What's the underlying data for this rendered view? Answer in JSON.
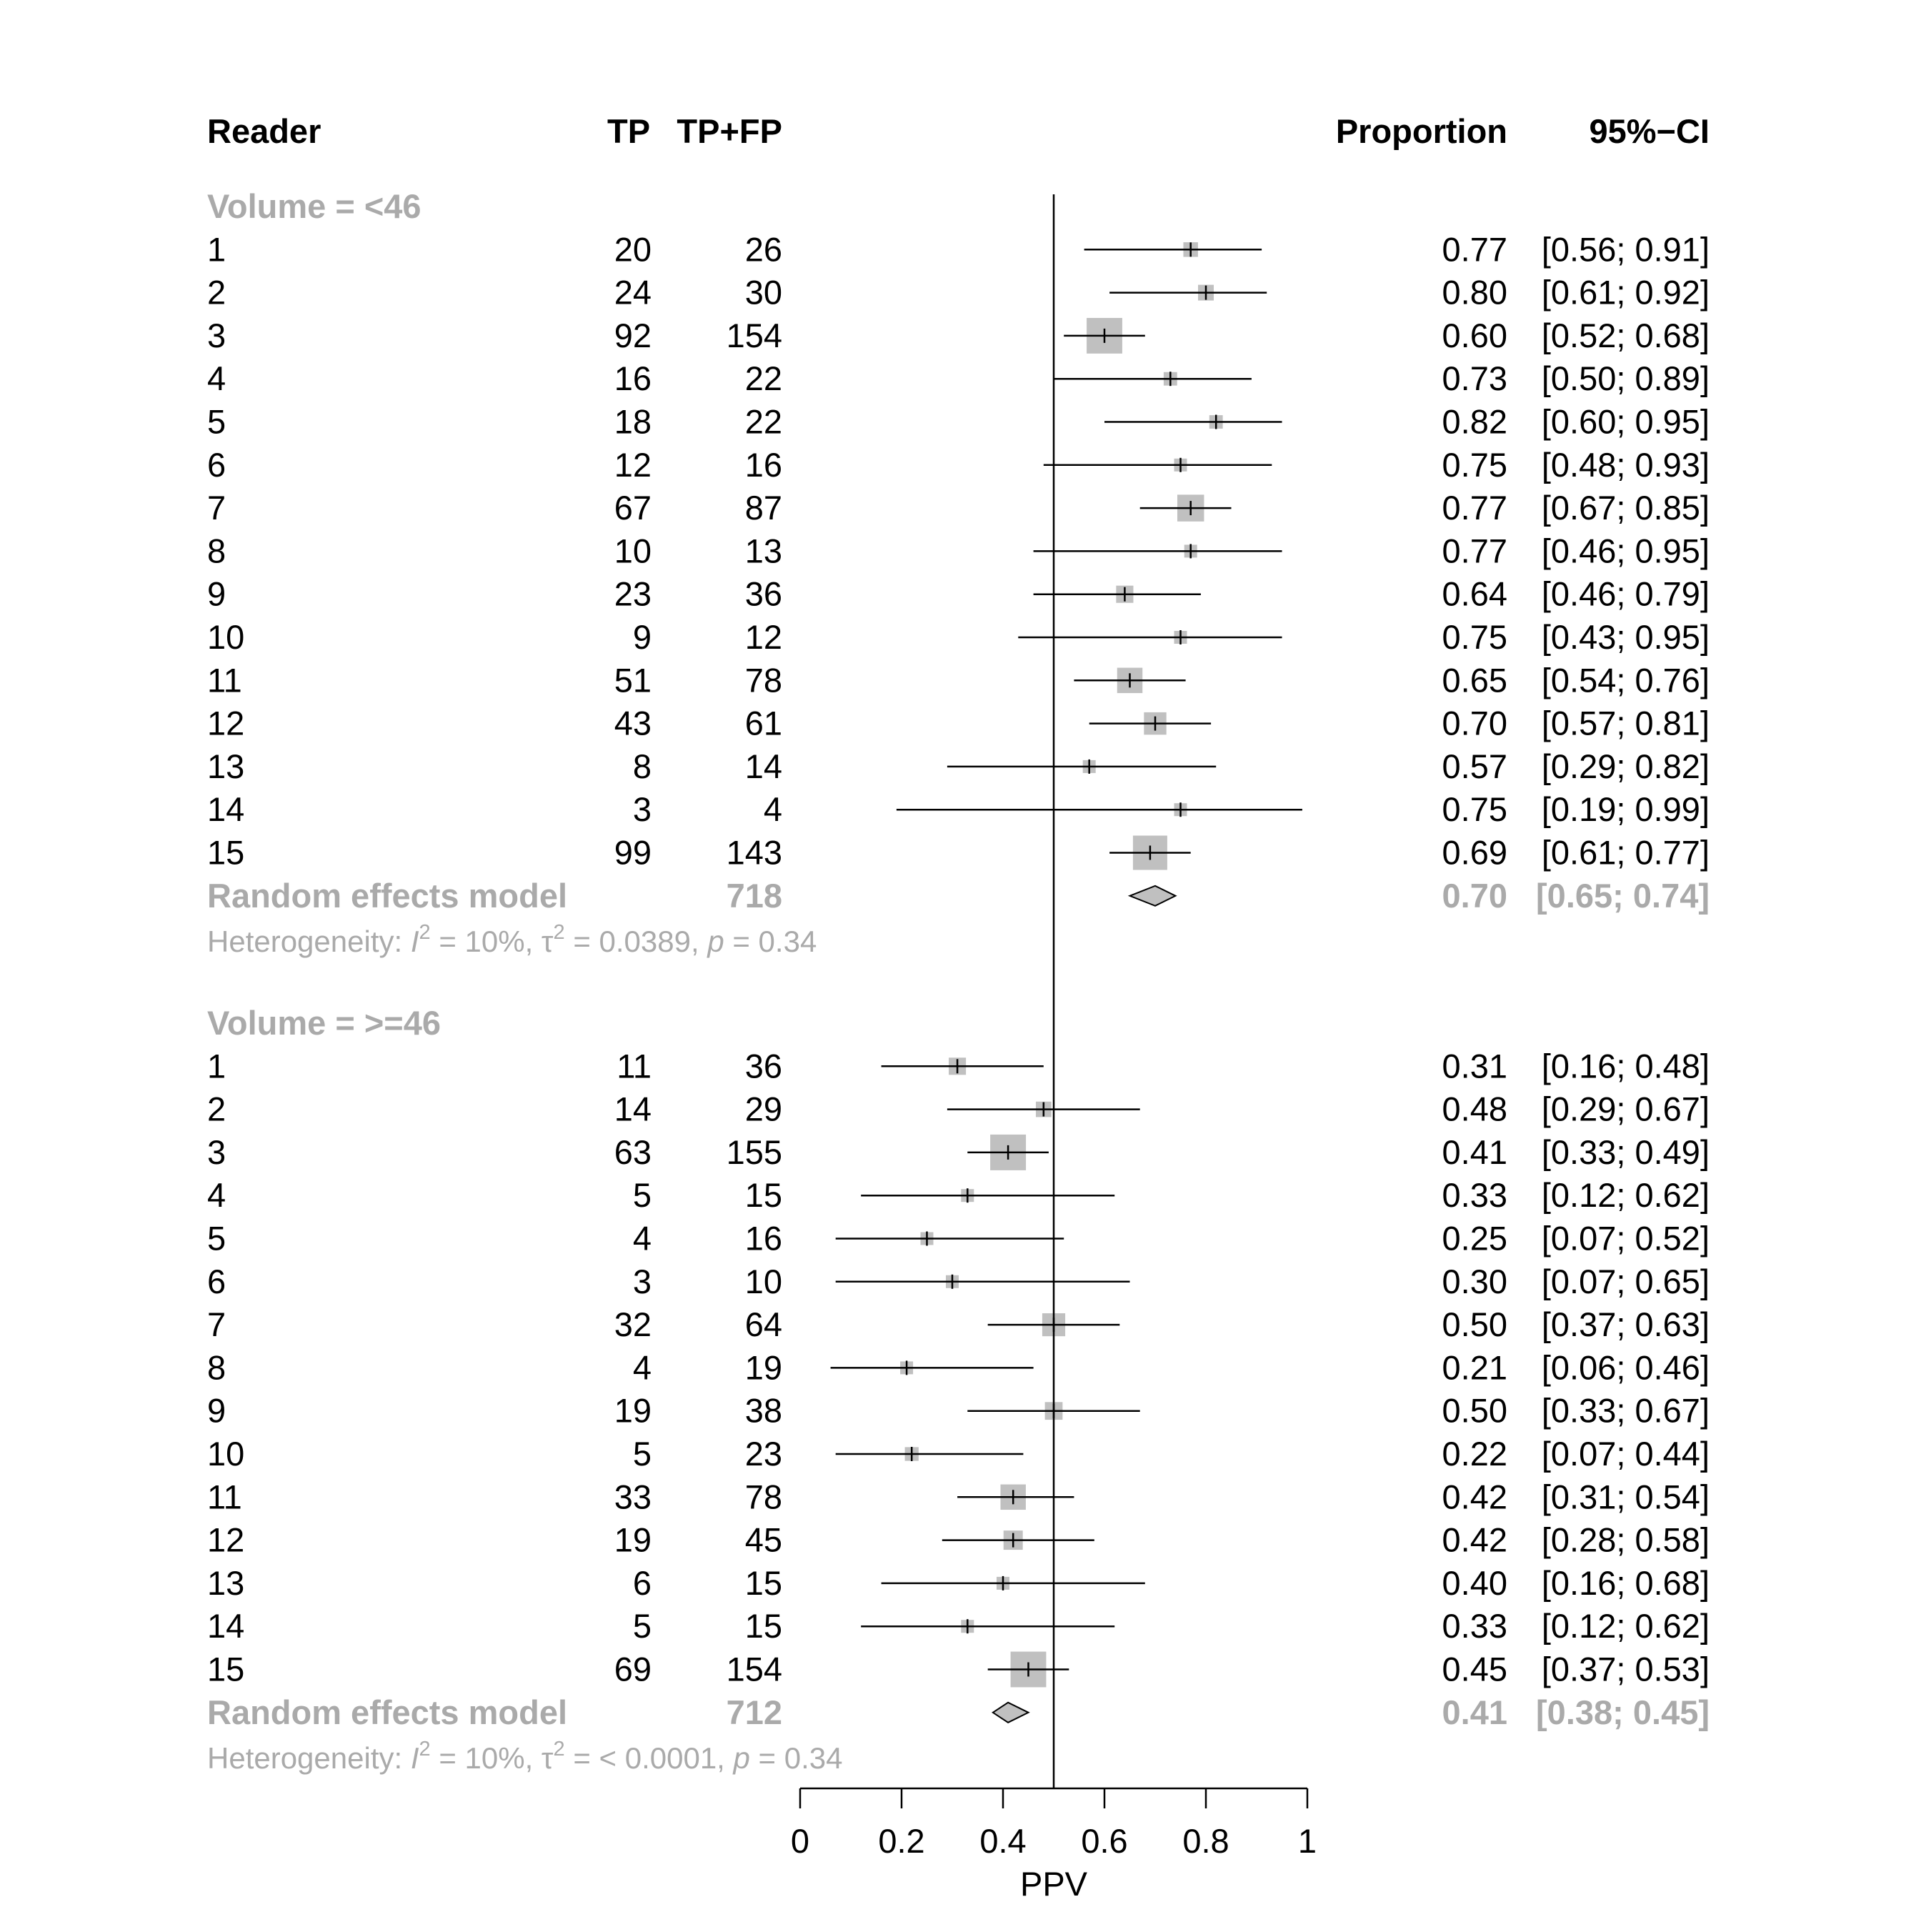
{
  "headers": {
    "reader": "Reader",
    "tp": "TP",
    "tpfp": "TP+FP",
    "proportion": "Proportion",
    "ci": "95%−CI"
  },
  "colors": {
    "text": "#000000",
    "muted": "#aaaaaa",
    "square": "#c0c0c0",
    "diamond": "#c0c0c0",
    "line": "#000000"
  },
  "chart_data": {
    "type": "forest",
    "xlabel": "PPV",
    "xlim": [
      0,
      1
    ],
    "xticks": [
      0,
      0.2,
      0.4,
      0.6,
      0.8,
      1
    ],
    "xtick_labels": [
      "0",
      "0.2",
      "0.4",
      "0.6",
      "0.8",
      "1"
    ],
    "reference_line": 0.5,
    "groups": [
      {
        "label": "Volume = <46",
        "studies": [
          {
            "reader": "1",
            "tp": "20",
            "total": "26",
            "est": 0.77,
            "lo": 0.56,
            "hi": 0.91,
            "prop": "0.77",
            "ci": "[0.56; 0.91]"
          },
          {
            "reader": "2",
            "tp": "24",
            "total": "30",
            "est": 0.8,
            "lo": 0.61,
            "hi": 0.92,
            "prop": "0.80",
            "ci": "[0.61; 0.92]"
          },
          {
            "reader": "3",
            "tp": "92",
            "total": "154",
            "est": 0.6,
            "lo": 0.52,
            "hi": 0.68,
            "prop": "0.60",
            "ci": "[0.52; 0.68]"
          },
          {
            "reader": "4",
            "tp": "16",
            "total": "22",
            "est": 0.73,
            "lo": 0.5,
            "hi": 0.89,
            "prop": "0.73",
            "ci": "[0.50; 0.89]"
          },
          {
            "reader": "5",
            "tp": "18",
            "total": "22",
            "est": 0.82,
            "lo": 0.6,
            "hi": 0.95,
            "prop": "0.82",
            "ci": "[0.60; 0.95]"
          },
          {
            "reader": "6",
            "tp": "12",
            "total": "16",
            "est": 0.75,
            "lo": 0.48,
            "hi": 0.93,
            "prop": "0.75",
            "ci": "[0.48; 0.93]"
          },
          {
            "reader": "7",
            "tp": "67",
            "total": "87",
            "est": 0.77,
            "lo": 0.67,
            "hi": 0.85,
            "prop": "0.77",
            "ci": "[0.67; 0.85]"
          },
          {
            "reader": "8",
            "tp": "10",
            "total": "13",
            "est": 0.77,
            "lo": 0.46,
            "hi": 0.95,
            "prop": "0.77",
            "ci": "[0.46; 0.95]"
          },
          {
            "reader": "9",
            "tp": "23",
            "total": "36",
            "est": 0.64,
            "lo": 0.46,
            "hi": 0.79,
            "prop": "0.64",
            "ci": "[0.46; 0.79]"
          },
          {
            "reader": "10",
            "tp": "9",
            "total": "12",
            "est": 0.75,
            "lo": 0.43,
            "hi": 0.95,
            "prop": "0.75",
            "ci": "[0.43; 0.95]"
          },
          {
            "reader": "11",
            "tp": "51",
            "total": "78",
            "est": 0.65,
            "lo": 0.54,
            "hi": 0.76,
            "prop": "0.65",
            "ci": "[0.54; 0.76]"
          },
          {
            "reader": "12",
            "tp": "43",
            "total": "61",
            "est": 0.7,
            "lo": 0.57,
            "hi": 0.81,
            "prop": "0.70",
            "ci": "[0.57; 0.81]"
          },
          {
            "reader": "13",
            "tp": "8",
            "total": "14",
            "est": 0.57,
            "lo": 0.29,
            "hi": 0.82,
            "prop": "0.57",
            "ci": "[0.29; 0.82]"
          },
          {
            "reader": "14",
            "tp": "3",
            "total": "4",
            "est": 0.75,
            "lo": 0.19,
            "hi": 0.99,
            "prop": "0.75",
            "ci": "[0.19; 0.99]"
          },
          {
            "reader": "15",
            "tp": "99",
            "total": "143",
            "est": 0.69,
            "lo": 0.61,
            "hi": 0.77,
            "prop": "0.69",
            "ci": "[0.61; 0.77]"
          }
        ],
        "pooled": {
          "label": "Random effects model",
          "total": "718",
          "est": 0.7,
          "lo": 0.65,
          "hi": 0.74,
          "prop": "0.70",
          "ci": "[0.65; 0.74]"
        },
        "heterogeneity": {
          "prefix": "Heterogeneity: ",
          "i_symbol": "I",
          "i2": " = 10%, ",
          "tau_symbol": "τ",
          "tau2": " = 0.0389, ",
          "p_symbol": "p",
          "p_value": " = 0.34"
        }
      },
      {
        "label": "Volume = >=46",
        "studies": [
          {
            "reader": "1",
            "tp": "11",
            "total": "36",
            "est": 0.31,
            "lo": 0.16,
            "hi": 0.48,
            "prop": "0.31",
            "ci": "[0.16; 0.48]"
          },
          {
            "reader": "2",
            "tp": "14",
            "total": "29",
            "est": 0.48,
            "lo": 0.29,
            "hi": 0.67,
            "prop": "0.48",
            "ci": "[0.29; 0.67]"
          },
          {
            "reader": "3",
            "tp": "63",
            "total": "155",
            "est": 0.41,
            "lo": 0.33,
            "hi": 0.49,
            "prop": "0.41",
            "ci": "[0.33; 0.49]"
          },
          {
            "reader": "4",
            "tp": "5",
            "total": "15",
            "est": 0.33,
            "lo": 0.12,
            "hi": 0.62,
            "prop": "0.33",
            "ci": "[0.12; 0.62]"
          },
          {
            "reader": "5",
            "tp": "4",
            "total": "16",
            "est": 0.25,
            "lo": 0.07,
            "hi": 0.52,
            "prop": "0.25",
            "ci": "[0.07; 0.52]"
          },
          {
            "reader": "6",
            "tp": "3",
            "total": "10",
            "est": 0.3,
            "lo": 0.07,
            "hi": 0.65,
            "prop": "0.30",
            "ci": "[0.07; 0.65]"
          },
          {
            "reader": "7",
            "tp": "32",
            "total": "64",
            "est": 0.5,
            "lo": 0.37,
            "hi": 0.63,
            "prop": "0.50",
            "ci": "[0.37; 0.63]"
          },
          {
            "reader": "8",
            "tp": "4",
            "total": "19",
            "est": 0.21,
            "lo": 0.06,
            "hi": 0.46,
            "prop": "0.21",
            "ci": "[0.06; 0.46]"
          },
          {
            "reader": "9",
            "tp": "19",
            "total": "38",
            "est": 0.5,
            "lo": 0.33,
            "hi": 0.67,
            "prop": "0.50",
            "ci": "[0.33; 0.67]"
          },
          {
            "reader": "10",
            "tp": "5",
            "total": "23",
            "est": 0.22,
            "lo": 0.07,
            "hi": 0.44,
            "prop": "0.22",
            "ci": "[0.07; 0.44]"
          },
          {
            "reader": "11",
            "tp": "33",
            "total": "78",
            "est": 0.42,
            "lo": 0.31,
            "hi": 0.54,
            "prop": "0.42",
            "ci": "[0.31; 0.54]"
          },
          {
            "reader": "12",
            "tp": "19",
            "total": "45",
            "est": 0.42,
            "lo": 0.28,
            "hi": 0.58,
            "prop": "0.42",
            "ci": "[0.28; 0.58]"
          },
          {
            "reader": "13",
            "tp": "6",
            "total": "15",
            "est": 0.4,
            "lo": 0.16,
            "hi": 0.68,
            "prop": "0.40",
            "ci": "[0.16; 0.68]"
          },
          {
            "reader": "14",
            "tp": "5",
            "total": "15",
            "est": 0.33,
            "lo": 0.12,
            "hi": 0.62,
            "prop": "0.33",
            "ci": "[0.12; 0.62]"
          },
          {
            "reader": "15",
            "tp": "69",
            "total": "154",
            "est": 0.45,
            "lo": 0.37,
            "hi": 0.53,
            "prop": "0.45",
            "ci": "[0.37; 0.53]"
          }
        ],
        "pooled": {
          "label": "Random effects model",
          "total": "712",
          "est": 0.41,
          "lo": 0.38,
          "hi": 0.45,
          "prop": "0.41",
          "ci": "[0.38; 0.45]"
        },
        "heterogeneity": {
          "prefix": "Heterogeneity: ",
          "i_symbol": "I",
          "i2": " = 10%, ",
          "tau_symbol": "τ",
          "tau2": " = < 0.0001, ",
          "p_symbol": "p",
          "p_value": " = 0.34"
        }
      }
    ]
  }
}
